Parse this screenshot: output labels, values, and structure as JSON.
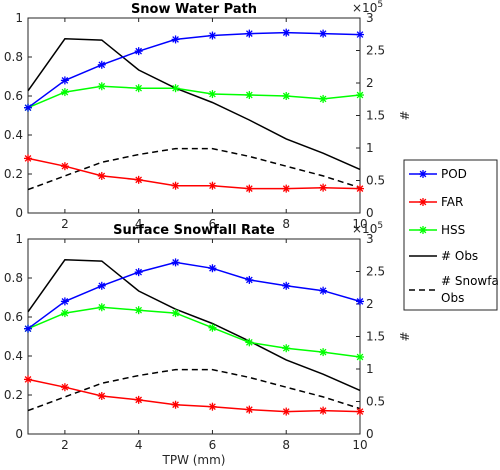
{
  "chart_data": [
    {
      "type": "line",
      "title": "Snow Water Path",
      "xlabel": "",
      "ylabel": "",
      "y2label": "#",
      "y2_multiplier": "×10",
      "y2_exponent": "5",
      "xlim": [
        1,
        10
      ],
      "ylim": [
        0,
        1
      ],
      "y2lim": [
        0,
        300000
      ],
      "x_ticks": [
        2,
        4,
        6,
        8,
        10
      ],
      "y_ticks": [
        0,
        0.2,
        0.4,
        0.6,
        0.8,
        1
      ],
      "y2_ticks": [
        "0",
        "0.5",
        "1",
        "1.5",
        "2",
        "2.5",
        "3"
      ],
      "x": [
        1,
        2,
        3,
        4,
        5,
        6,
        7,
        8,
        9,
        10
      ],
      "series": [
        {
          "name": "POD",
          "axis": "left",
          "color": "#0000ff",
          "marker": "star",
          "dash": "",
          "values": [
            0.54,
            0.68,
            0.76,
            0.83,
            0.89,
            0.91,
            0.92,
            0.925,
            0.92,
            0.915
          ]
        },
        {
          "name": "FAR",
          "axis": "left",
          "color": "#ff0000",
          "marker": "star",
          "dash": "",
          "values": [
            0.28,
            0.24,
            0.19,
            0.17,
            0.14,
            0.14,
            0.125,
            0.125,
            0.13,
            0.125
          ]
        },
        {
          "name": "HSS",
          "axis": "left",
          "color": "#00ff00",
          "marker": "star",
          "dash": "",
          "values": [
            0.54,
            0.62,
            0.65,
            0.64,
            0.64,
            0.61,
            0.605,
            0.6,
            0.585,
            0.605
          ]
        },
        {
          "name": "# Obs",
          "axis": "right",
          "color": "#000000",
          "marker": "none",
          "dash": "",
          "values": [
            188000,
            268000,
            266000,
            220000,
            192000,
            170000,
            143000,
            114000,
            92000,
            67000
          ]
        },
        {
          "name": "# Snowfall Obs",
          "axis": "right",
          "color": "#000000",
          "marker": "none",
          "dash": "6,4",
          "values": [
            36000,
            57000,
            78000,
            90000,
            99000,
            99000,
            87000,
            72000,
            57000,
            39000
          ]
        }
      ]
    },
    {
      "type": "line",
      "title": "Surface Snowfall Rate",
      "xlabel": "TPW (mm)",
      "ylabel": "",
      "y2label": "#",
      "y2_multiplier": "×10",
      "y2_exponent": "5",
      "xlim": [
        1,
        10
      ],
      "ylim": [
        0,
        1
      ],
      "y2lim": [
        0,
        300000
      ],
      "x_ticks": [
        2,
        4,
        6,
        8,
        10
      ],
      "y_ticks": [
        0,
        0.2,
        0.4,
        0.6,
        0.8,
        1
      ],
      "y2_ticks": [
        "0",
        "0.5",
        "1",
        "1.5",
        "2",
        "2.5",
        "3"
      ],
      "x": [
        1,
        2,
        3,
        4,
        5,
        6,
        7,
        8,
        9,
        10
      ],
      "series": [
        {
          "name": "POD",
          "axis": "left",
          "color": "#0000ff",
          "marker": "star",
          "dash": "",
          "values": [
            0.54,
            0.68,
            0.76,
            0.83,
            0.88,
            0.85,
            0.79,
            0.76,
            0.735,
            0.68
          ]
        },
        {
          "name": "FAR",
          "axis": "left",
          "color": "#ff0000",
          "marker": "star",
          "dash": "",
          "values": [
            0.28,
            0.24,
            0.195,
            0.175,
            0.15,
            0.14,
            0.125,
            0.115,
            0.12,
            0.115
          ]
        },
        {
          "name": "HSS",
          "axis": "left",
          "color": "#00ff00",
          "marker": "star",
          "dash": "",
          "values": [
            0.54,
            0.62,
            0.65,
            0.635,
            0.62,
            0.545,
            0.47,
            0.44,
            0.42,
            0.395
          ]
        },
        {
          "name": "# Obs",
          "axis": "right",
          "color": "#000000",
          "marker": "none",
          "dash": "",
          "values": [
            188000,
            268000,
            266000,
            220000,
            192000,
            170000,
            143000,
            114000,
            92000,
            67000
          ]
        },
        {
          "name": "# Snowfall Obs",
          "axis": "right",
          "color": "#000000",
          "marker": "none",
          "dash": "6,4",
          "values": [
            36000,
            57000,
            78000,
            90000,
            99000,
            99000,
            87000,
            72000,
            57000,
            39000
          ]
        }
      ]
    }
  ],
  "legend": {
    "placement": "right",
    "items": [
      {
        "line1": "POD",
        "line2": "",
        "color": "#0000ff",
        "marker": "star",
        "dash": ""
      },
      {
        "line1": "FAR",
        "line2": "",
        "color": "#ff0000",
        "marker": "star",
        "dash": ""
      },
      {
        "line1": "HSS",
        "line2": "",
        "color": "#00ff00",
        "marker": "star",
        "dash": ""
      },
      {
        "line1": "# Obs",
        "line2": "",
        "color": "#000000",
        "marker": "none",
        "dash": ""
      },
      {
        "line1": "# Snowfall",
        "line2": "Obs",
        "color": "#000000",
        "marker": "none",
        "dash": "6,4"
      }
    ]
  }
}
